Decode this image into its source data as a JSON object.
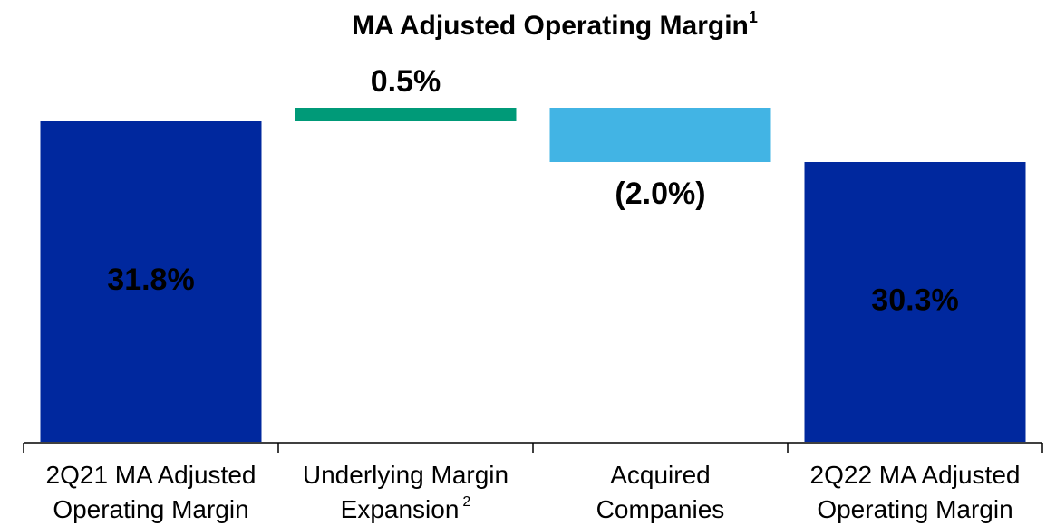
{
  "chart_data": {
    "type": "waterfall",
    "title": "MA Adjusted Operating Margin",
    "title_note": "1",
    "categories": [
      {
        "lines": [
          "2Q21 MA Adjusted",
          "Operating Margin"
        ]
      },
      {
        "lines": [
          "Underlying Margin",
          "Expansion"
        ],
        "note": "2"
      },
      {
        "lines": [
          "Acquired",
          "Companies"
        ]
      },
      {
        "lines": [
          "2Q22 MA Adjusted",
          "Operating Margin"
        ]
      }
    ],
    "values": [
      31.8,
      0.5,
      -2.0,
      30.3
    ],
    "value_labels": [
      "31.8%",
      "0.5%",
      "(2.0%)",
      "30.3%"
    ],
    "totals": [
      true,
      false,
      false,
      true
    ],
    "colors": [
      "#00289e",
      "#009a78",
      "#42b4e4",
      "#00289e"
    ],
    "ylim": [
      20,
      33.3
    ]
  }
}
